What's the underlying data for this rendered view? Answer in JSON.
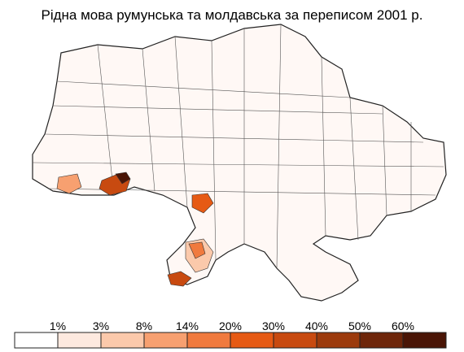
{
  "title": "Рідна мова румунська та молдавська за переписом 2001 р.",
  "legend": {
    "labels": [
      "1%",
      "3%",
      "8%",
      "14%",
      "20%",
      "30%",
      "40%",
      "50%",
      "60%"
    ],
    "colors": [
      "#ffffff",
      "#fde9df",
      "#fbc9ab",
      "#f7a070",
      "#f07a3e",
      "#e65a14",
      "#c84a10",
      "#9c3a0c",
      "#6e260a",
      "#4a1506"
    ]
  }
}
